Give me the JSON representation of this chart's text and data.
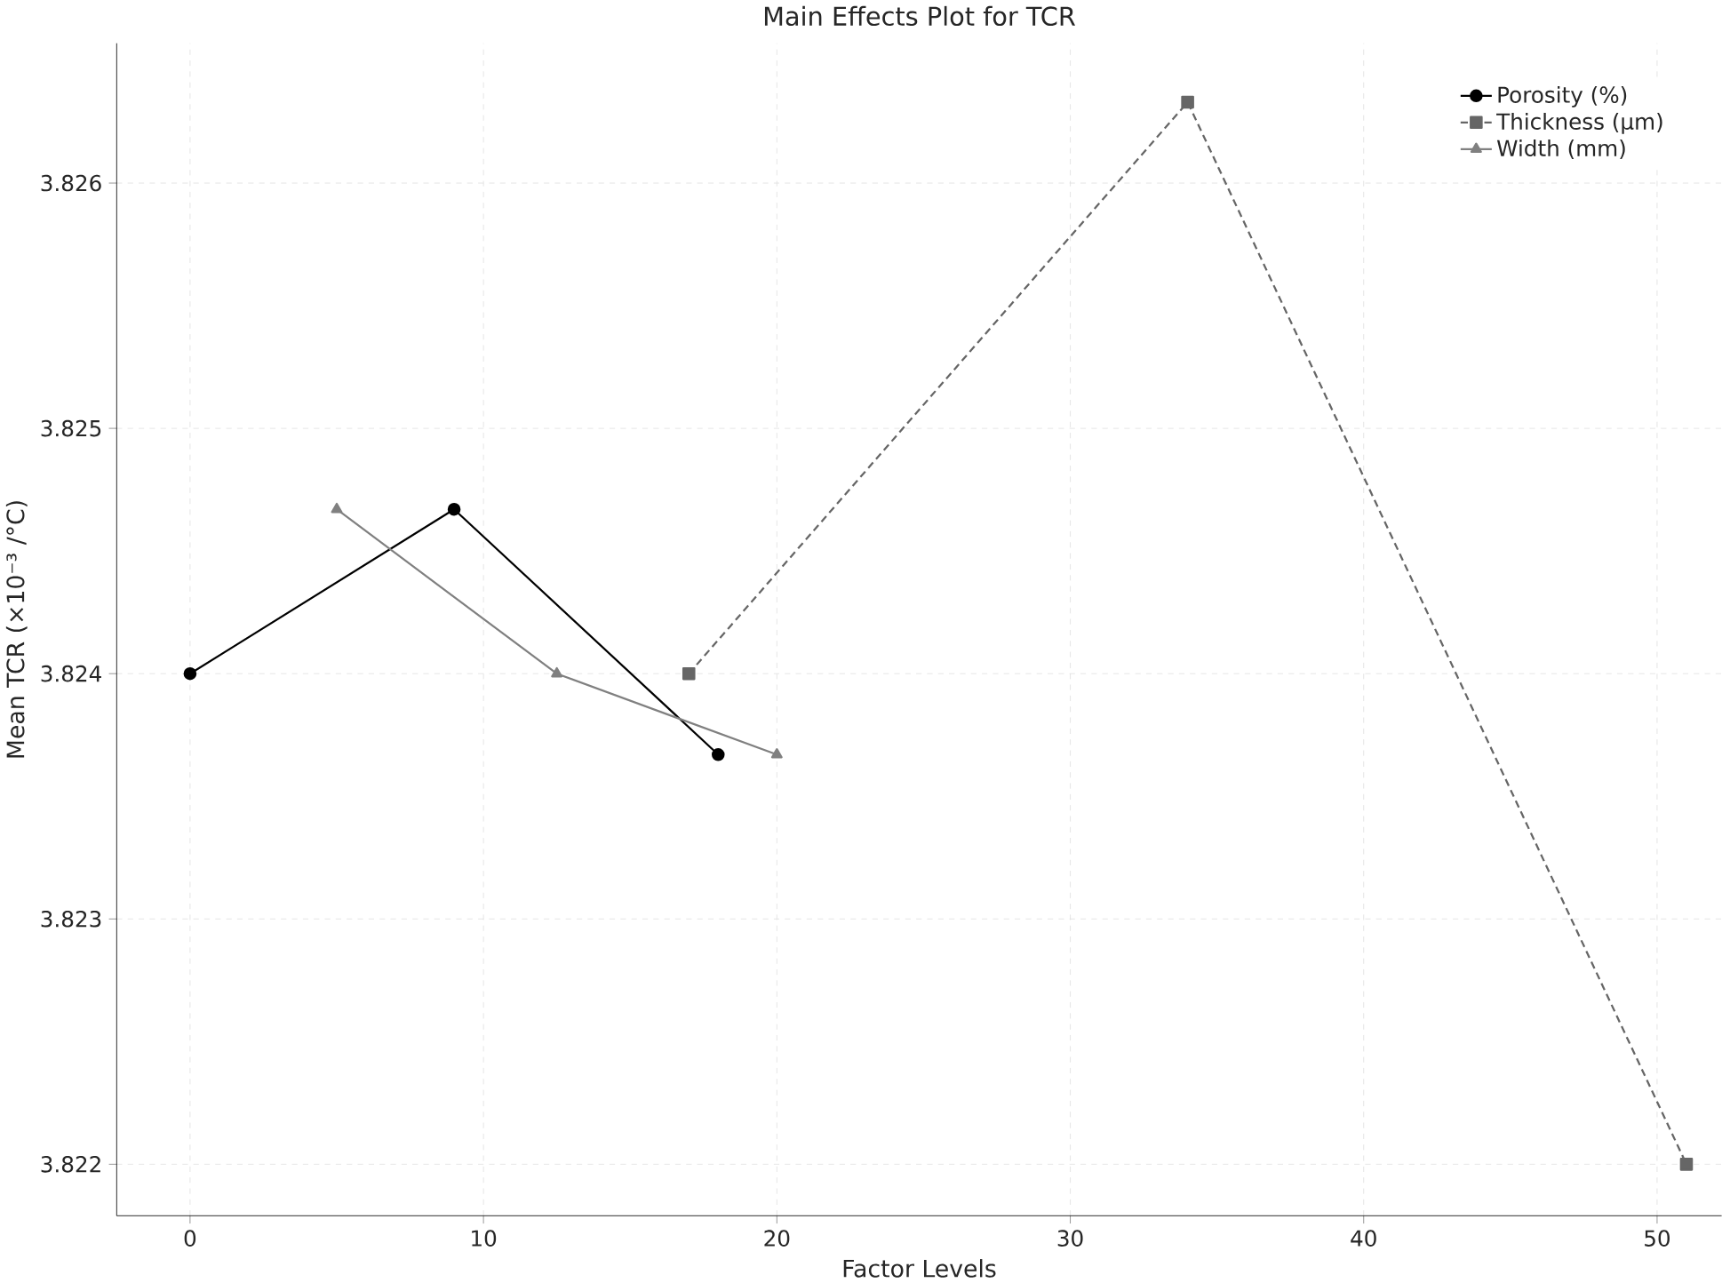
{
  "chart_data": {
    "type": "line",
    "title": "Main Effects Plot for TCR",
    "xlabel": "Factor Levels",
    "ylabel": "Mean TCR (×10⁻³ /°C)",
    "series": [
      {
        "name": "Porosity (%)",
        "color": "#000000",
        "x": [
          0,
          9,
          18
        ],
        "values": [
          3.824,
          3.82467,
          3.82367
        ],
        "marker": "circle",
        "line_style": "solid"
      },
      {
        "name": "Thickness (µm)",
        "color": "#666666",
        "x": [
          17,
          34,
          51
        ],
        "values": [
          3.824,
          3.82633,
          3.822
        ],
        "marker": "square",
        "line_style": "dashed"
      },
      {
        "name": "Width (mm)",
        "color": "#808080",
        "x": [
          5,
          12.5,
          20
        ],
        "values": [
          3.82467,
          3.824,
          3.82367
        ],
        "marker": "triangle",
        "line_style": "solid"
      }
    ],
    "xlim": [
      -2.5,
      52.2
    ],
    "ylim": [
      3.82179,
      3.82657
    ],
    "xticks": [
      0,
      10,
      20,
      30,
      40,
      50
    ],
    "yticks": [
      {
        "value": 3.822,
        "label": "3.822"
      },
      {
        "value": 3.823,
        "label": "3.823"
      },
      {
        "value": 3.824,
        "label": "3.824"
      },
      {
        "value": 3.825,
        "label": "3.825"
      },
      {
        "value": 3.826,
        "label": "3.826"
      }
    ],
    "grid": true,
    "legend": "top right"
  }
}
